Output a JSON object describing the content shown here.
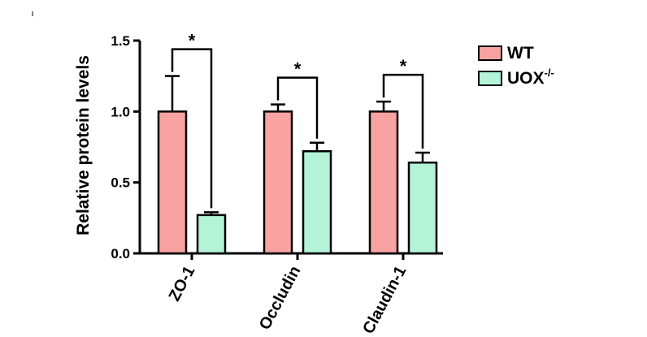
{
  "chart_data": {
    "type": "bar",
    "ylabel": "Relative protein levels",
    "xlabel": "",
    "ylim": [
      0,
      1.5
    ],
    "yticks": [
      "0.0",
      "0.5",
      "1.0",
      "1.5"
    ],
    "categories": [
      "ZO-1",
      "Occludin",
      "Claudin-1"
    ],
    "series": [
      {
        "name": "WT",
        "color": "#f8a3a1",
        "values": [
          1.0,
          1.0,
          1.0
        ],
        "errors": [
          0.25,
          0.05,
          0.07
        ]
      },
      {
        "name": "UOX",
        "name_sup": "-/-",
        "color": "#b3f3d8",
        "values": [
          0.27,
          0.72,
          0.64
        ],
        "errors": [
          0.02,
          0.06,
          0.07
        ]
      }
    ],
    "significance": [
      "*",
      "*",
      "*"
    ],
    "legend_position": "top-right",
    "grid": false
  }
}
